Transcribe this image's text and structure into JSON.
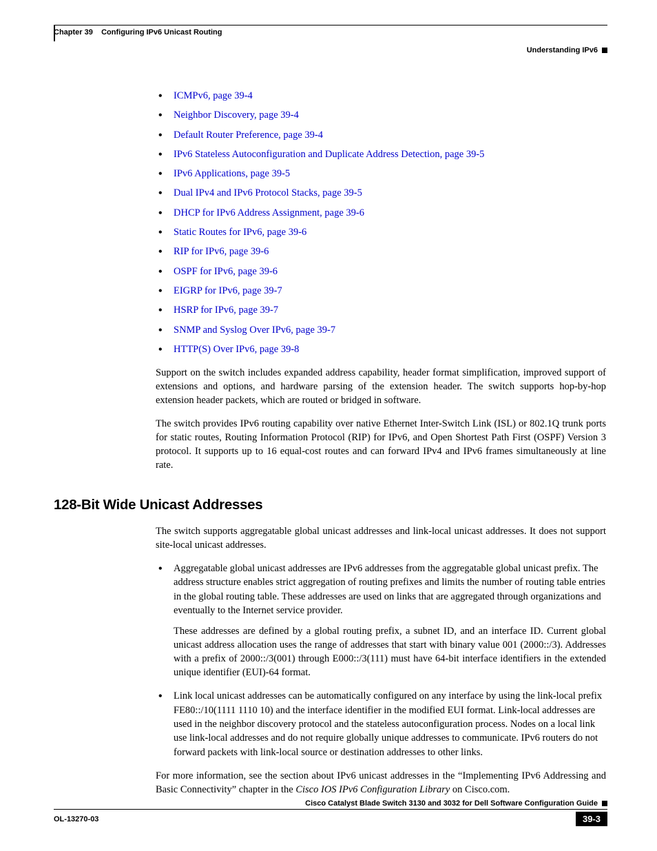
{
  "header": {
    "chapter_label": "Chapter 39",
    "chapter_title": "Configuring IPv6 Unicast Routing",
    "section": "Understanding IPv6"
  },
  "toc_links": [
    "ICMPv6, page 39-4",
    "Neighbor Discovery, page 39-4",
    "Default Router Preference, page 39-4",
    "IPv6 Stateless Autoconfiguration and Duplicate Address Detection, page 39-5",
    "IPv6 Applications, page 39-5",
    "Dual IPv4 and IPv6 Protocol Stacks, page 39-5",
    "DHCP for IPv6 Address Assignment, page 39-6",
    "Static Routes for IPv6, page 39-6",
    "RIP for IPv6, page 39-6",
    "OSPF for IPv6, page 39-6",
    "EIGRP for IPv6, page 39-7",
    "HSRP for IPv6, page 39-7",
    "SNMP and Syslog Over IPv6, page 39-7",
    "HTTP(S) Over IPv6, page 39-8"
  ],
  "paragraphs": {
    "p1": "Support on the switch includes expanded address capability, header format simplification, improved support of extensions and options, and hardware parsing of the extension header. The switch supports hop-by-hop extension header packets, which are routed or bridged in software.",
    "p2": "The switch provides IPv6 routing capability over native Ethernet Inter-Switch Link (ISL) or 802.1Q trunk ports for static routes, Routing Information Protocol (RIP) for IPv6, and Open Shortest Path First (OSPF) Version 3 protocol. It supports up to 16 equal-cost routes and can forward IPv4 and IPv6 frames simultaneously at line rate."
  },
  "section_heading": "128-Bit Wide Unicast Addresses",
  "section_body": {
    "intro": "The switch supports aggregatable global unicast addresses and link-local unicast addresses. It does not support site-local unicast addresses.",
    "bullet1a": "Aggregatable global unicast addresses are IPv6 addresses from the aggregatable global unicast prefix. The address structure enables strict aggregation of routing prefixes and limits the number of routing table entries in the global routing table. These addresses are used on links that are aggregated through organizations and eventually to the Internet service provider.",
    "bullet1b": "These addresses are defined by a global routing prefix, a subnet ID, and an interface ID. Current global unicast address allocation uses the range of addresses that start with binary value 001 (2000::/3). Addresses with a prefix of 2000::/3(001) through E000::/3(111) must have 64-bit interface identifiers in the extended unique identifier (EUI)-64 format.",
    "bullet2": "Link local unicast addresses can be automatically configured on any interface by using the link-local prefix FE80::/10(1111 1110 10) and the interface identifier in the modified EUI format. Link-local addresses are used in the neighbor discovery protocol and the stateless autoconfiguration process. Nodes on a local link use link-local addresses and do not require globally unique addresses to communicate. IPv6 routers do not forward packets with link-local source or destination addresses to other links.",
    "outro_a": "For more information, see the section about IPv6 unicast addresses in the “Implementing IPv6 Addressing and Basic Connectivity” chapter in the ",
    "outro_italic": "Cisco IOS IPv6 Configuration Library",
    "outro_b": " on Cisco.com."
  },
  "footer": {
    "book_title": "Cisco Catalyst Blade Switch 3130 and 3032 for Dell Software Configuration Guide",
    "doc_id": "OL-13270-03",
    "page_num": "39-3"
  },
  "colors": {
    "link": "#0000cc",
    "text": "#000000",
    "bg": "#ffffff"
  }
}
